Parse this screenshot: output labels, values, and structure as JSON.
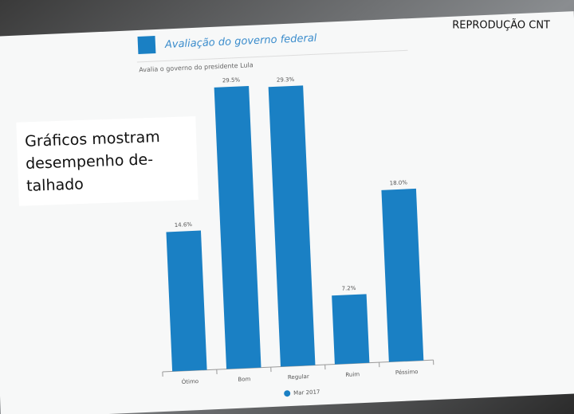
{
  "credit": "REPRODUÇÃO CNT",
  "caption": {
    "lines": [
      "Gráficos mostram",
      "desempenho de-",
      "talhado"
    ]
  },
  "chart_data": {
    "type": "bar",
    "title": "Avaliação do governo federal",
    "subtitle": "Avalia o governo do presidente Lula",
    "categories": [
      "Ótimo",
      "Bom",
      "Regular",
      "Ruim",
      "Péssimo"
    ],
    "series": [
      {
        "name": "Mar 2017",
        "color": "#1a80c4",
        "values": [
          14.6,
          29.5,
          29.3,
          7.2,
          18.0
        ],
        "value_labels": [
          "14.6%",
          "29.5%",
          "29.3%",
          "7.2%",
          "18.0%"
        ]
      }
    ],
    "ylim": [
      0,
      30
    ]
  }
}
